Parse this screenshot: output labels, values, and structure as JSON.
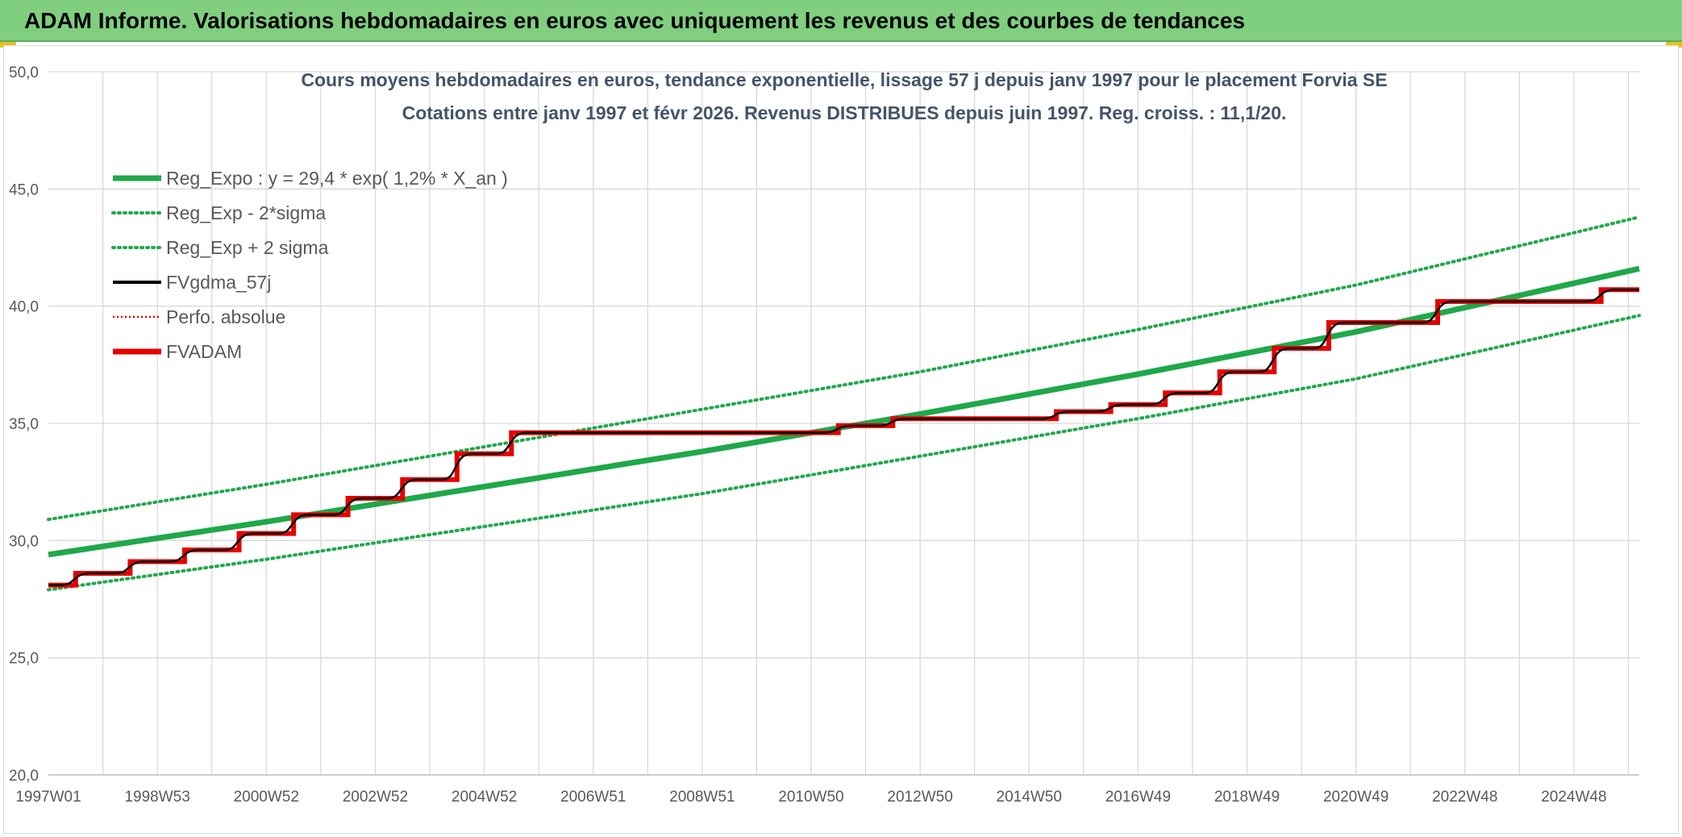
{
  "header": {
    "title": "ADAM Informe. Valorisations hebdomadaires en euros avec uniquement les revenus et des courbes de tendances"
  },
  "colors": {
    "banner": "#7fcf7f",
    "trend": "#1fa84a",
    "band": "#1fa84a",
    "gdma": "#000000",
    "adam": "#e60000",
    "perfo": "#e60000",
    "grid": "#d9d9d9"
  },
  "chart_data": {
    "type": "line",
    "title_line1": "Cours moyens hebdomadaires en euros, tendance exponentielle, lissage 57 j depuis janv 1997 pour le placement Forvia SE",
    "title_line2": "Cotations entre janv 1997 et févr 2026. Revenus DISTRIBUES depuis juin 1997. Reg. croiss. : 11,1/20.",
    "xlabel": "",
    "ylabel": "",
    "x_range": [
      1997.0,
      2026.2
    ],
    "ylim": [
      20,
      50
    ],
    "y_ticks": [
      "20,0",
      "25,0",
      "30,0",
      "35,0",
      "40,0",
      "45,0",
      "50,0"
    ],
    "y_tick_values": [
      20,
      25,
      30,
      35,
      40,
      45,
      50
    ],
    "x_tick_labels": [
      "1997W01",
      "1998W53",
      "2000W52",
      "2002W52",
      "2004W52",
      "2006W51",
      "2008W51",
      "2010W50",
      "2012W50",
      "2014W50",
      "2016W49",
      "2018W49",
      "2020W49",
      "2022W48",
      "2024W48"
    ],
    "x_tick_values": [
      1997.0,
      1999.0,
      2001.0,
      2003.0,
      2005.0,
      2007.0,
      2009.0,
      2011.0,
      2013.0,
      2015.0,
      2017.0,
      2019.0,
      2021.0,
      2023.0,
      2025.0
    ],
    "grid": true,
    "legend_position": "top-left",
    "legend": [
      {
        "label": "Reg_Expo : y = 29,4 * exp( 1,2% *  X_an )",
        "style": "solid-thick",
        "color": "#1fa84a"
      },
      {
        "label": "Reg_Exp - 2*sigma",
        "style": "dotted",
        "color": "#1fa84a"
      },
      {
        "label": "Reg_Exp + 2 sigma",
        "style": "dotted",
        "color": "#1fa84a"
      },
      {
        "label": "FVgdma_57j",
        "style": "solid",
        "color": "#000000"
      },
      {
        "label": "Perfo. absolue",
        "style": "dotted-thin",
        "color": "#e60000"
      },
      {
        "label": "FVADAM",
        "style": "solid-thick",
        "color": "#e60000"
      }
    ],
    "series": [
      {
        "name": "Reg_Expo : y = 29,4 * exp( 1,2% *  X_an )",
        "points": [
          [
            1997.0,
            29.4
          ],
          [
            2001.0,
            30.8
          ],
          [
            2005.0,
            32.3
          ],
          [
            2009.0,
            33.8
          ],
          [
            2013.0,
            35.4
          ],
          [
            2017.0,
            37.1
          ],
          [
            2021.0,
            38.9
          ],
          [
            2026.2,
            41.6
          ]
        ]
      },
      {
        "name": "Reg_Exp - 2*sigma",
        "points": [
          [
            1997.0,
            27.9
          ],
          [
            2001.0,
            29.2
          ],
          [
            2005.0,
            30.6
          ],
          [
            2009.0,
            32.0
          ],
          [
            2013.0,
            33.6
          ],
          [
            2017.0,
            35.2
          ],
          [
            2021.0,
            36.9
          ],
          [
            2026.2,
            39.6
          ]
        ]
      },
      {
        "name": "Reg_Exp + 2 sigma",
        "points": [
          [
            1997.0,
            30.9
          ],
          [
            2001.0,
            32.4
          ],
          [
            2005.0,
            34.0
          ],
          [
            2009.0,
            35.6
          ],
          [
            2013.0,
            37.2
          ],
          [
            2017.0,
            39.0
          ],
          [
            2021.0,
            40.9
          ],
          [
            2026.2,
            43.8
          ]
        ]
      },
      {
        "name": "FVADAM",
        "steps": [
          [
            1997.0,
            28.1
          ],
          [
            1997.5,
            28.6
          ],
          [
            1998.5,
            29.1
          ],
          [
            1999.5,
            29.6
          ],
          [
            2000.5,
            30.3
          ],
          [
            2001.5,
            31.1
          ],
          [
            2002.5,
            31.8
          ],
          [
            2003.5,
            32.6
          ],
          [
            2004.5,
            33.7
          ],
          [
            2005.5,
            34.6
          ],
          [
            2011.5,
            34.9
          ],
          [
            2012.5,
            35.2
          ],
          [
            2015.5,
            35.5
          ],
          [
            2016.5,
            35.8
          ],
          [
            2017.5,
            36.3
          ],
          [
            2018.5,
            37.2
          ],
          [
            2019.5,
            38.2
          ],
          [
            2020.5,
            39.3
          ],
          [
            2022.5,
            40.2
          ],
          [
            2025.5,
            40.7
          ]
        ],
        "end_x": 2026.2
      },
      {
        "name": "FVgdma_57j",
        "steps": [
          [
            1997.0,
            28.1
          ],
          [
            1997.5,
            28.6
          ],
          [
            1998.5,
            29.1
          ],
          [
            1999.5,
            29.6
          ],
          [
            2000.5,
            30.3
          ],
          [
            2001.5,
            31.1
          ],
          [
            2002.5,
            31.8
          ],
          [
            2003.5,
            32.6
          ],
          [
            2004.5,
            33.7
          ],
          [
            2005.5,
            34.6
          ],
          [
            2011.5,
            34.9
          ],
          [
            2012.5,
            35.2
          ],
          [
            2015.5,
            35.5
          ],
          [
            2016.5,
            35.8
          ],
          [
            2017.5,
            36.3
          ],
          [
            2018.5,
            37.2
          ],
          [
            2019.5,
            38.2
          ],
          [
            2020.5,
            39.3
          ],
          [
            2022.5,
            40.2
          ],
          [
            2025.5,
            40.7
          ]
        ],
        "end_x": 2026.2
      }
    ]
  }
}
